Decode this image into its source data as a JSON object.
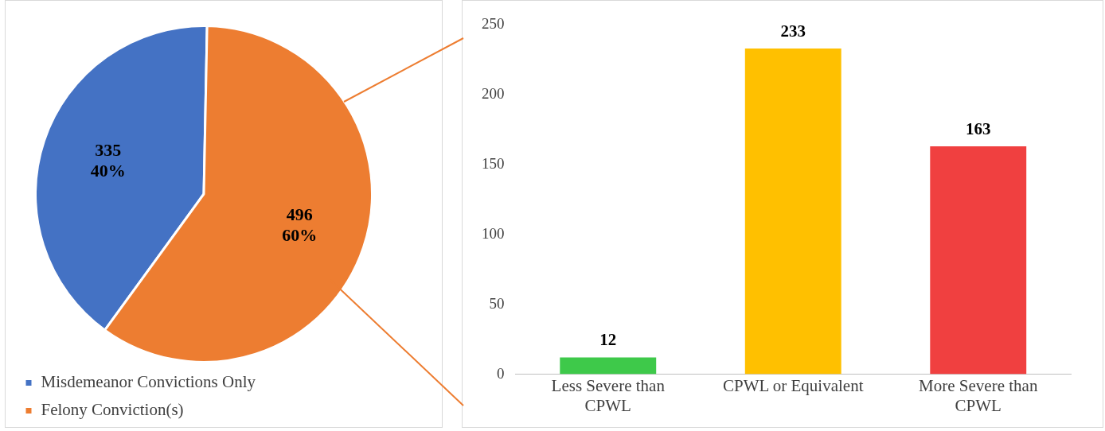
{
  "chart_data": [
    {
      "type": "pie",
      "categories": [
        "Misdemeanor Convictions Only",
        "Felony Conviction(s)"
      ],
      "values": [
        335,
        496
      ],
      "colors": [
        "#4472c4",
        "#ed7d31"
      ],
      "value_labels": [
        "335\n40%",
        "496\n60%"
      ],
      "legend": "bottom"
    },
    {
      "type": "bar",
      "categories": [
        "Less Severe than CPWL",
        "CPWL  or Equivalent",
        "More Severe than CPWL"
      ],
      "values": [
        12,
        233,
        163
      ],
      "colors": [
        "#3ec94a",
        "#ffc000",
        "#f04040"
      ],
      "ylim": [
        0,
        250
      ],
      "yticks": [
        0,
        50,
        100,
        150,
        200,
        250
      ],
      "data_labels": true
    }
  ]
}
